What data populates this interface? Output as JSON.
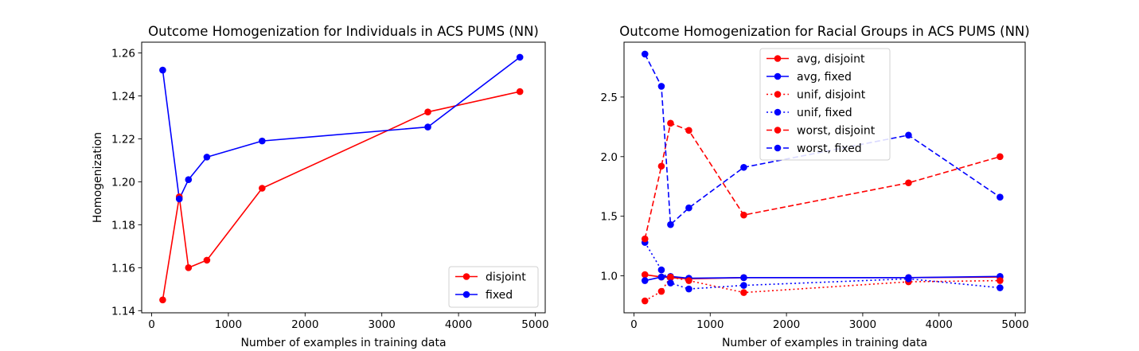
{
  "chart_data": [
    {
      "type": "line",
      "title": "Outcome Homogenization for Individuals in ACS PUMS (NN)",
      "xlabel": "Number of examples in training data",
      "ylabel": "Homogenization",
      "xlim": [
        -130,
        5130
      ],
      "ylim": [
        1.139,
        1.265
      ],
      "xticks": [
        0,
        1000,
        2000,
        3000,
        4000,
        5000
      ],
      "xtick_labels": [
        "0",
        "1000",
        "2000",
        "3000",
        "4000",
        "5000"
      ],
      "yticks": [
        1.14,
        1.16,
        1.18,
        1.2,
        1.22,
        1.24,
        1.26
      ],
      "ytick_labels": [
        "1.14",
        "1.16",
        "1.18",
        "1.20",
        "1.22",
        "1.24",
        "1.26"
      ],
      "grid": false,
      "legend": "lower right",
      "x": [
        144,
        360,
        480,
        720,
        1440,
        3600,
        4800
      ],
      "series": [
        {
          "name": "disjoint",
          "color": "#ff0000",
          "style": "solid",
          "values": [
            1.145,
            1.193,
            1.16,
            1.1635,
            1.197,
            1.2325,
            1.242
          ]
        },
        {
          "name": "fixed",
          "color": "#0000ff",
          "style": "solid",
          "values": [
            1.252,
            1.192,
            1.201,
            1.2115,
            1.219,
            1.2255,
            1.258
          ]
        }
      ]
    },
    {
      "type": "line",
      "title": "Outcome Homogenization for Racial Groups in ACS PUMS (NN)",
      "xlabel": "Number of examples in training data",
      "ylabel": "",
      "xlim": [
        -130,
        5130
      ],
      "ylim": [
        0.69,
        2.96
      ],
      "xticks": [
        0,
        1000,
        2000,
        3000,
        4000,
        5000
      ],
      "xtick_labels": [
        "0",
        "1000",
        "2000",
        "3000",
        "4000",
        "5000"
      ],
      "yticks": [
        1.0,
        1.5,
        2.0,
        2.5
      ],
      "ytick_labels": [
        "1.0",
        "1.5",
        "2.0",
        "2.5"
      ],
      "grid": false,
      "legend": "upper center",
      "x": [
        144,
        360,
        480,
        720,
        1440,
        3600,
        4800
      ],
      "series": [
        {
          "name": "avg, disjoint",
          "color": "#ff0000",
          "style": "solid",
          "values": [
            1.01,
            0.99,
            0.985,
            0.975,
            0.985,
            0.985,
            0.99
          ]
        },
        {
          "name": "avg, fixed",
          "color": "#0000ff",
          "style": "solid",
          "values": [
            0.96,
            0.99,
            0.995,
            0.98,
            0.985,
            0.985,
            0.995
          ]
        },
        {
          "name": "unif, disjoint",
          "color": "#ff0000",
          "style": "dotted",
          "values": [
            0.79,
            0.87,
            0.99,
            0.96,
            0.86,
            0.95,
            0.96
          ]
        },
        {
          "name": "unif, fixed",
          "color": "#0000ff",
          "style": "dotted",
          "values": [
            1.28,
            1.05,
            0.94,
            0.89,
            0.92,
            0.975,
            0.9
          ]
        },
        {
          "name": "worst, disjoint",
          "color": "#ff0000",
          "style": "dashed",
          "values": [
            1.31,
            1.92,
            2.28,
            2.22,
            1.51,
            1.78,
            2.0
          ]
        },
        {
          "name": "worst, fixed",
          "color": "#0000ff",
          "style": "dashed",
          "values": [
            2.86,
            2.59,
            1.43,
            1.57,
            1.91,
            2.18,
            1.66
          ]
        }
      ]
    }
  ]
}
